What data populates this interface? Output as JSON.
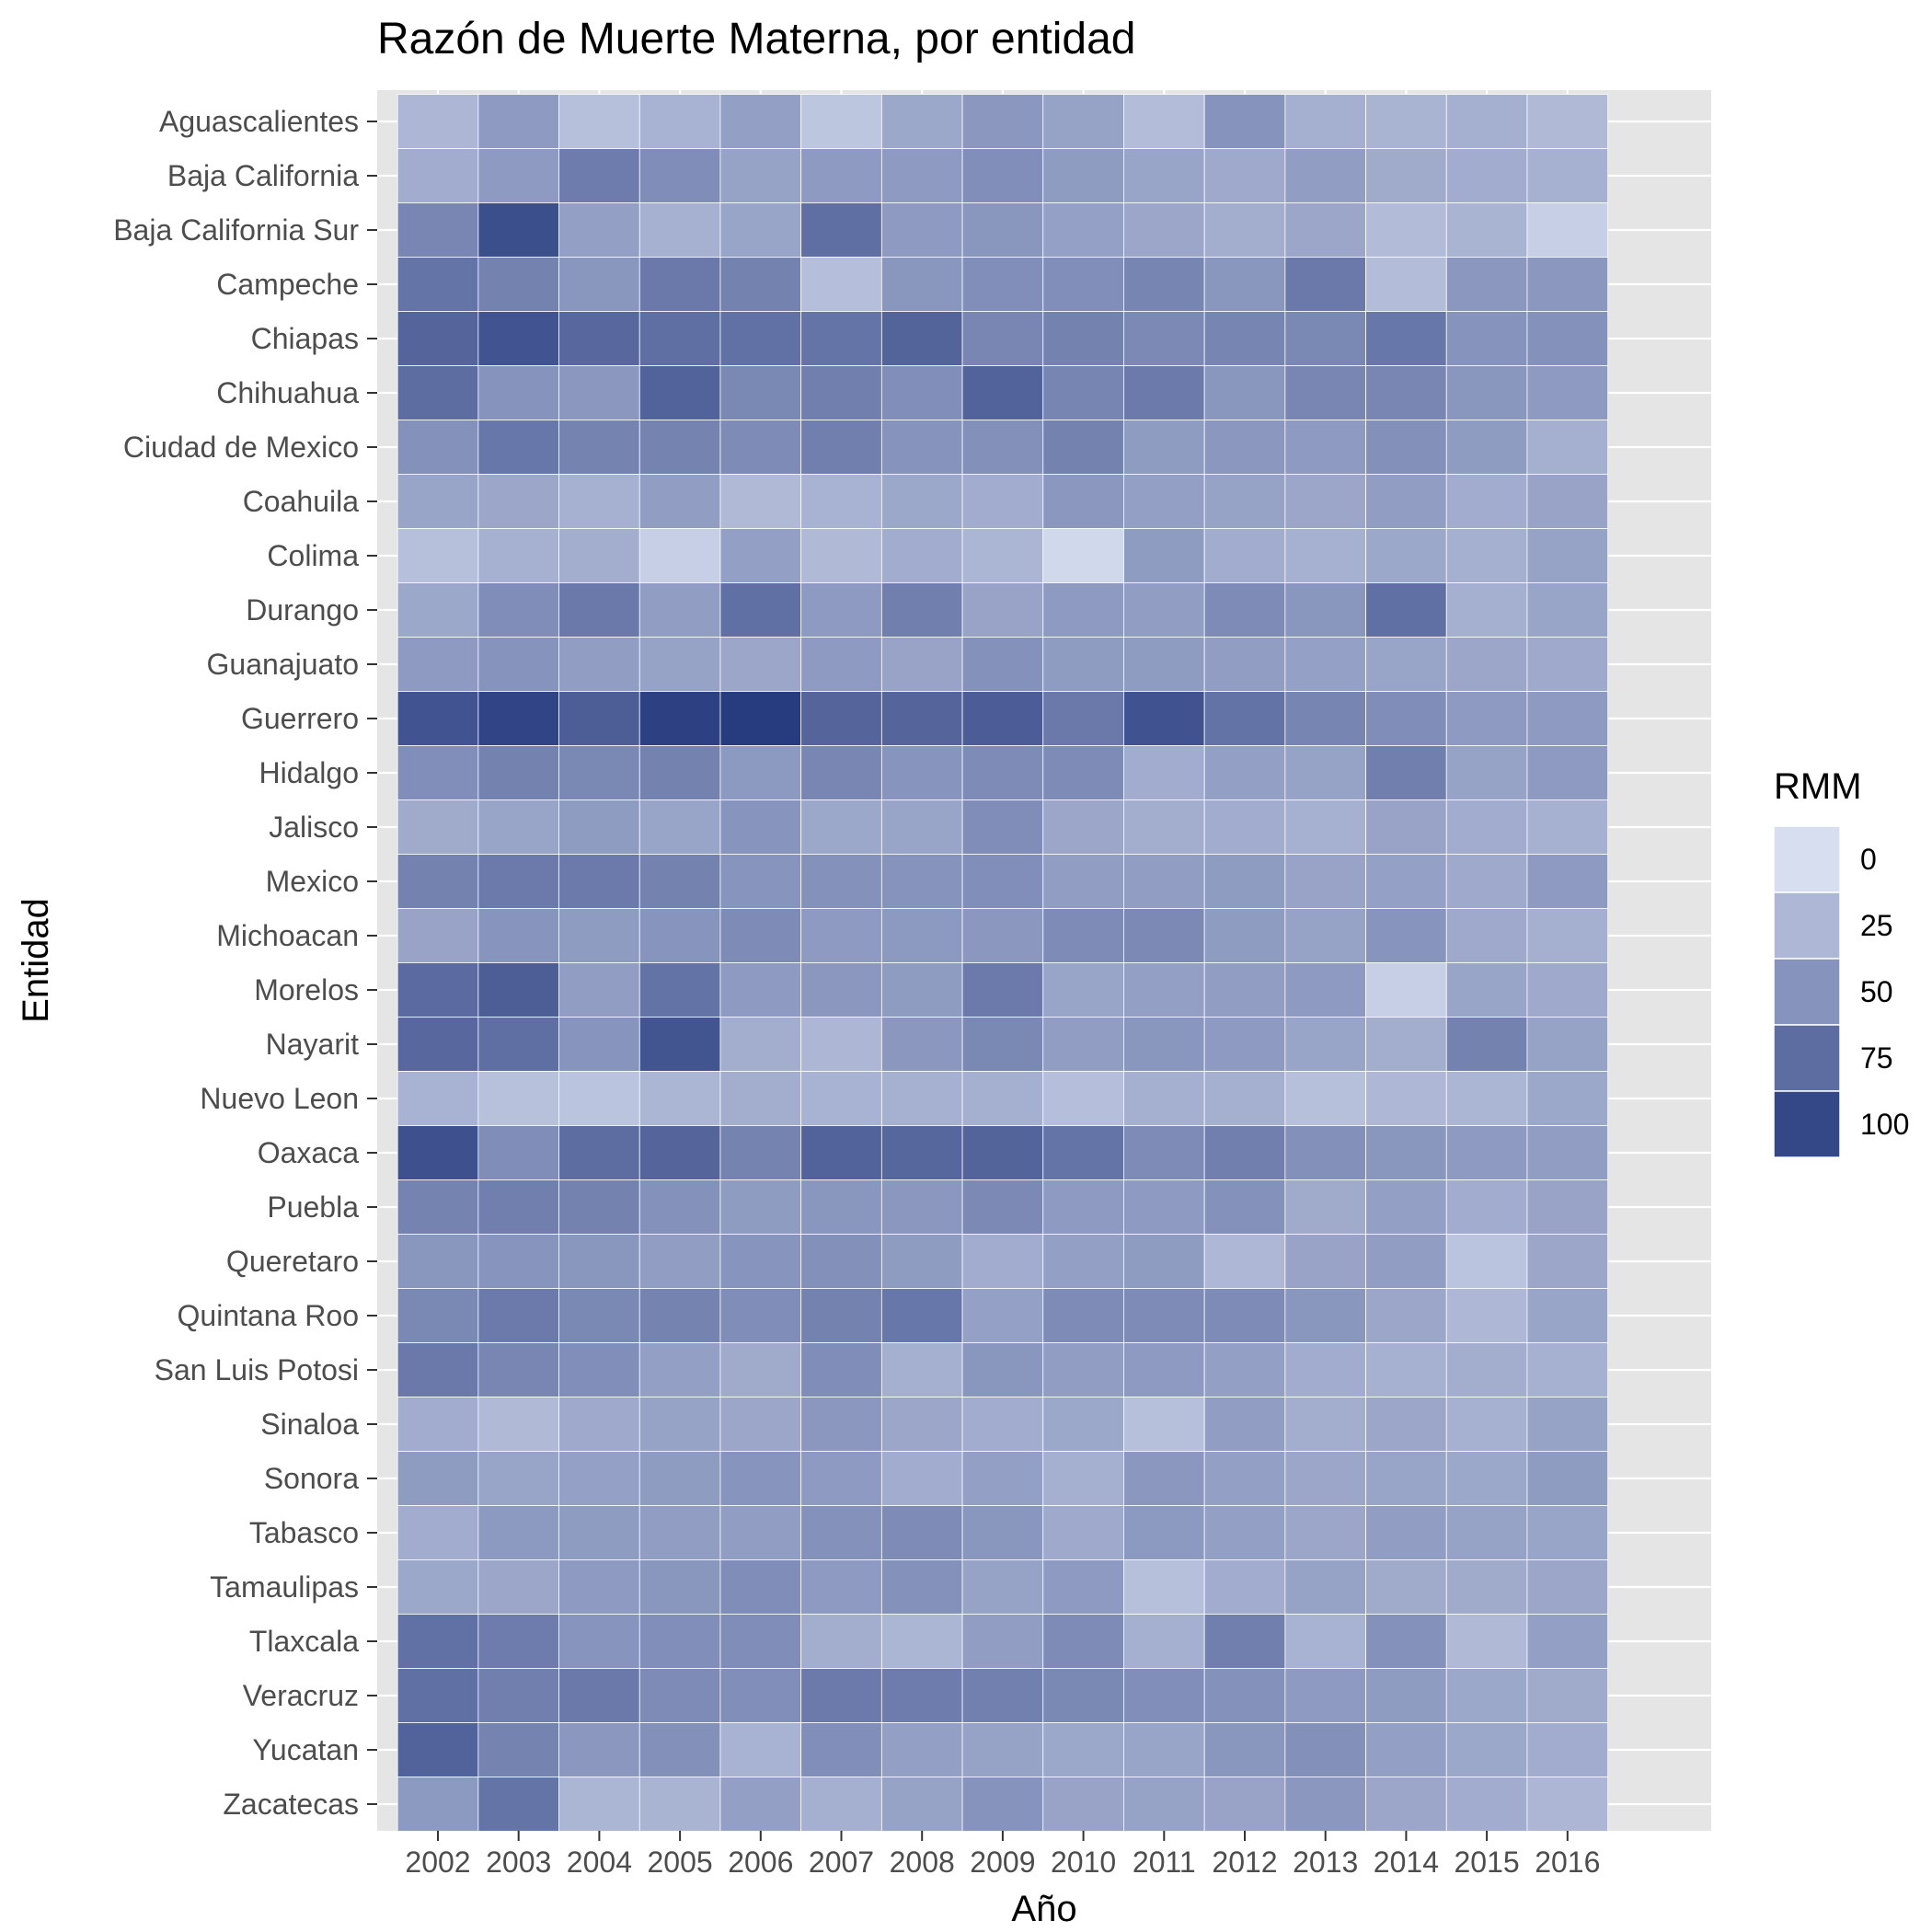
{
  "chart_data": {
    "type": "heatmap",
    "title": "Razón de Muerte Materna, por entidad",
    "xlabel": "Año",
    "ylabel": "Entidad",
    "x": [
      "2002",
      "2003",
      "2004",
      "2005",
      "2006",
      "2007",
      "2008",
      "2009",
      "2010",
      "2011",
      "2012",
      "2013",
      "2014",
      "2015",
      "2016"
    ],
    "y": [
      "Aguascalientes",
      "Baja California",
      "Baja California Sur",
      "Campeche",
      "Chiapas",
      "Chihuahua",
      "Ciudad de Mexico",
      "Coahuila",
      "Colima",
      "Durango",
      "Guanajuato",
      "Guerrero",
      "Hidalgo",
      "Jalisco",
      "Mexico",
      "Michoacan",
      "Morelos",
      "Nayarit",
      "Nuevo Leon",
      "Oaxaca",
      "Puebla",
      "Queretaro",
      "Quintana Roo",
      "San Luis Potosi",
      "Sinaloa",
      "Sonora",
      "Tabasco",
      "Tamaulipas",
      "Tlaxcala",
      "Veracruz",
      "Yucatan",
      "Zacatecas"
    ],
    "values": [
      [
        26,
        45,
        20,
        29,
        42,
        16,
        36,
        47,
        40,
        22,
        50,
        31,
        28,
        31,
        24
      ],
      [
        33,
        45,
        65,
        54,
        40,
        45,
        45,
        53,
        44,
        38,
        35,
        43,
        34,
        33,
        30
      ],
      [
        58,
        95,
        42,
        30,
        38,
        74,
        45,
        48,
        41,
        37,
        32,
        37,
        23,
        28,
        10
      ],
      [
        70,
        61,
        48,
        67,
        61,
        21,
        48,
        53,
        53,
        59,
        48,
        67,
        22,
        47,
        47
      ],
      [
        80,
        92,
        78,
        74,
        72,
        70,
        81,
        58,
        61,
        56,
        59,
        57,
        68,
        50,
        51
      ],
      [
        75,
        50,
        47,
        82,
        57,
        63,
        53,
        82,
        59,
        66,
        48,
        58,
        58,
        48,
        45
      ],
      [
        51,
        68,
        60,
        60,
        55,
        63,
        50,
        52,
        61,
        44,
        47,
        45,
        52,
        44,
        31
      ],
      [
        38,
        37,
        30,
        43,
        24,
        29,
        36,
        33,
        47,
        42,
        40,
        37,
        43,
        33,
        39
      ],
      [
        20,
        30,
        32,
        10,
        42,
        24,
        33,
        27,
        4,
        44,
        33,
        30,
        36,
        31,
        40
      ],
      [
        36,
        54,
        67,
        43,
        73,
        45,
        63,
        39,
        45,
        43,
        55,
        48,
        73,
        31,
        38
      ],
      [
        45,
        50,
        43,
        40,
        37,
        45,
        39,
        51,
        44,
        44,
        43,
        41,
        38,
        37,
        35
      ],
      [
        92,
        102,
        85,
        105,
        108,
        80,
        80,
        86,
        67,
        93,
        71,
        59,
        54,
        45,
        45
      ],
      [
        53,
        61,
        57,
        61,
        46,
        58,
        49,
        55,
        55,
        33,
        42,
        40,
        63,
        40,
        45
      ],
      [
        34,
        38,
        44,
        38,
        49,
        36,
        38,
        54,
        37,
        32,
        33,
        30,
        39,
        33,
        30
      ],
      [
        61,
        66,
        66,
        61,
        49,
        51,
        50,
        53,
        43,
        43,
        44,
        39,
        41,
        35,
        45
      ],
      [
        39,
        49,
        44,
        49,
        55,
        45,
        46,
        47,
        55,
        56,
        44,
        40,
        49,
        35,
        31
      ],
      [
        76,
        85,
        43,
        71,
        45,
        47,
        44,
        66,
        38,
        42,
        43,
        45,
        10,
        38,
        35
      ],
      [
        78,
        74,
        49,
        91,
        32,
        26,
        47,
        57,
        43,
        48,
        45,
        38,
        32,
        61,
        40
      ],
      [
        29,
        19,
        17,
        27,
        32,
        29,
        30,
        31,
        21,
        31,
        31,
        20,
        25,
        27,
        36
      ],
      [
        94,
        54,
        75,
        80,
        60,
        82,
        79,
        81,
        70,
        55,
        63,
        52,
        48,
        45,
        43
      ],
      [
        60,
        63,
        61,
        51,
        44,
        48,
        47,
        56,
        45,
        45,
        51,
        34,
        42,
        33,
        39
      ],
      [
        48,
        49,
        48,
        43,
        49,
        52,
        44,
        33,
        42,
        44,
        25,
        39,
        43,
        17,
        37
      ],
      [
        57,
        66,
        57,
        60,
        54,
        61,
        68,
        41,
        55,
        55,
        55,
        48,
        37,
        25,
        38
      ],
      [
        67,
        58,
        53,
        42,
        34,
        54,
        31,
        48,
        43,
        45,
        42,
        33,
        30,
        32,
        30
      ],
      [
        33,
        24,
        35,
        40,
        37,
        47,
        37,
        33,
        36,
        20,
        43,
        32,
        37,
        30,
        40
      ],
      [
        44,
        38,
        41,
        44,
        49,
        45,
        33,
        42,
        31,
        47,
        42,
        37,
        38,
        36,
        44
      ],
      [
        33,
        46,
        44,
        43,
        43,
        51,
        55,
        48,
        35,
        46,
        42,
        37,
        43,
        40,
        38
      ],
      [
        36,
        37,
        45,
        48,
        54,
        45,
        51,
        40,
        45,
        20,
        33,
        40,
        34,
        34,
        37
      ],
      [
        72,
        65,
        49,
        53,
        54,
        32,
        27,
        43,
        55,
        31,
        63,
        29,
        51,
        24,
        42
      ],
      [
        73,
        63,
        67,
        55,
        53,
        66,
        65,
        62,
        57,
        53,
        51,
        45,
        44,
        36,
        34
      ],
      [
        82,
        60,
        47,
        52,
        29,
        53,
        42,
        40,
        36,
        38,
        48,
        52,
        42,
        36,
        33
      ],
      [
        46,
        70,
        27,
        28,
        42,
        31,
        40,
        50,
        39,
        40,
        39,
        47,
        37,
        33,
        26
      ]
    ],
    "colorbar": {
      "title": "RMM",
      "ticks": [
        0,
        25,
        50,
        75,
        100
      ],
      "range": [
        0,
        110
      ],
      "low_color": "#d7def0",
      "high_color": "#24387d"
    },
    "grid": true,
    "legend_position": "right"
  }
}
